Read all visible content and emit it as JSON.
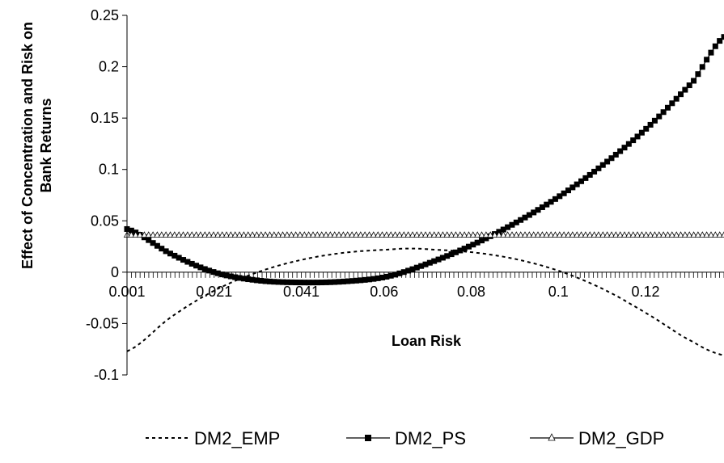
{
  "chart_data": {
    "type": "line",
    "xlabel": "Loan Risk",
    "ylabel": [
      "Effect of Concentration and Risk on",
      "Bank Returns"
    ],
    "xlim": [
      0.001,
      0.138
    ],
    "ylim": [
      -0.1,
      0.25
    ],
    "y_ticks": [
      -0.1,
      -0.05,
      0,
      0.05,
      0.1,
      0.15,
      0.2,
      0.25
    ],
    "y_tick_labels": [
      "-0.1",
      "-0.05",
      "0",
      "0.05",
      "0.1",
      "0.15",
      "0.2",
      "0.25"
    ],
    "x_ticks": [
      0.001,
      0.021,
      0.041,
      0.06,
      0.08,
      0.1,
      0.12
    ],
    "x_tick_labels": [
      "0.001",
      "0.021",
      "0.041",
      "0.06",
      "0.08",
      "0.1",
      "0.12"
    ],
    "grid": false,
    "legend_position": "bottom",
    "series": [
      {
        "name": "DM2_EMP",
        "style": "dashed",
        "color": "#000000",
        "x": [
          0.001,
          0.011,
          0.021,
          0.031,
          0.041,
          0.051,
          0.061,
          0.066,
          0.071,
          0.081,
          0.091,
          0.101,
          0.111,
          0.121,
          0.131,
          0.138
        ],
        "values": [
          -0.077,
          -0.044,
          -0.018,
          0.0,
          0.012,
          0.019,
          0.022,
          0.023,
          0.022,
          0.019,
          0.012,
          0.0,
          -0.018,
          -0.042,
          -0.068,
          -0.081
        ]
      },
      {
        "name": "DM2_PS",
        "style": "solid-square-markers",
        "color": "#000000",
        "x": [
          0.001,
          0.011,
          0.021,
          0.031,
          0.041,
          0.051,
          0.061,
          0.071,
          0.081,
          0.091,
          0.101,
          0.111,
          0.121,
          0.131,
          0.138
        ],
        "values": [
          0.042,
          0.018,
          0.0,
          -0.008,
          -0.01,
          -0.009,
          -0.004,
          0.01,
          0.028,
          0.05,
          0.076,
          0.107,
          0.143,
          0.186,
          0.229
        ]
      },
      {
        "name": "DM2_GDP",
        "style": "solid-triangle-markers",
        "color": "#000000",
        "x": [
          0.001,
          0.138
        ],
        "values": [
          0.036,
          0.036
        ]
      }
    ]
  }
}
